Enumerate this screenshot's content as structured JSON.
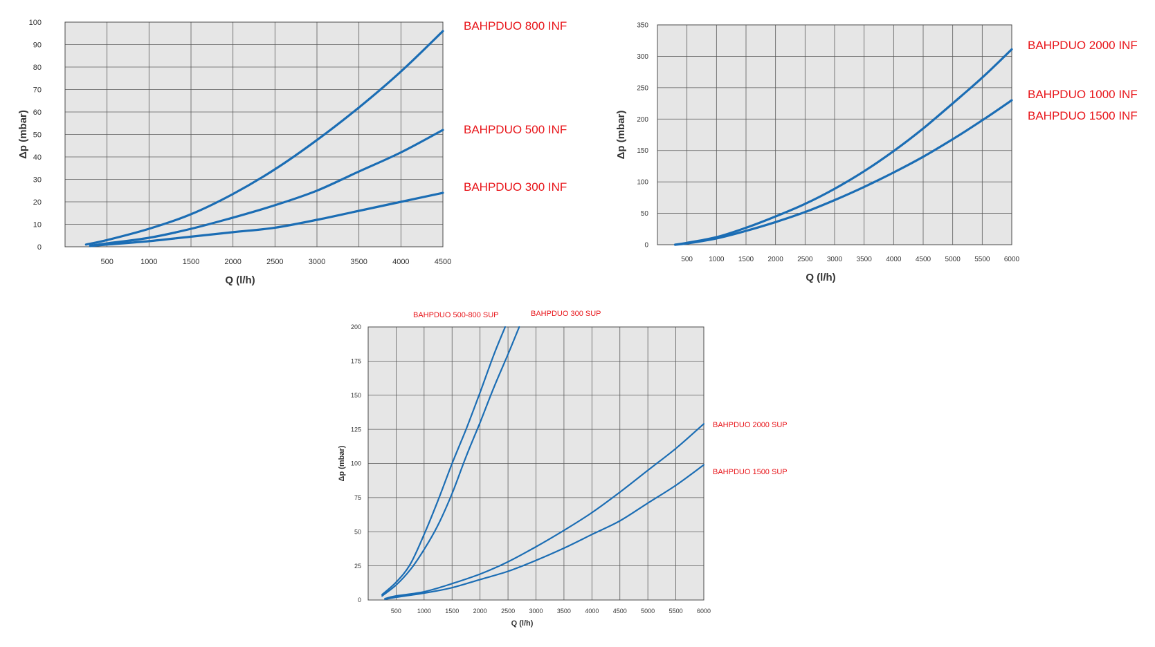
{
  "colors": {
    "line": "#1b6db4",
    "label": "#e8161b",
    "plot_background": "#e6e6e6",
    "grid": "#5a5a5a"
  },
  "chart_data": [
    {
      "type": "line",
      "xlabel": "Q (l/h)",
      "ylabel": "Δp (mbar)",
      "xlim": [
        0,
        4500
      ],
      "ylim": [
        0,
        100
      ],
      "x_ticks": [
        500,
        1000,
        1500,
        2000,
        2500,
        3000,
        3500,
        4000,
        4500
      ],
      "y_ticks": [
        0,
        10,
        20,
        30,
        40,
        50,
        60,
        70,
        80,
        90,
        100
      ],
      "grid": true,
      "legend": "labels at right of each curve",
      "series": [
        {
          "name": "BAHPDUO 800 INF",
          "x": [
            250,
            500,
            1000,
            1500,
            2000,
            2500,
            3000,
            3500,
            4000,
            4500
          ],
          "y": [
            1,
            3,
            8,
            14.5,
            23.5,
            34.5,
            47.5,
            62,
            78,
            96
          ]
        },
        {
          "name": "BAHPDUO 500 INF",
          "x": [
            300,
            500,
            1000,
            1500,
            2000,
            2500,
            3000,
            3500,
            4000,
            4500
          ],
          "y": [
            0.5,
            1.5,
            4,
            8,
            13,
            18.5,
            25,
            33.5,
            42,
            52
          ]
        },
        {
          "name": "BAHPDUO 300 INF",
          "x": [
            300,
            500,
            1000,
            1500,
            2000,
            2500,
            3000,
            3500,
            4000,
            4500
          ],
          "y": [
            0.3,
            1,
            2.5,
            4.5,
            6.5,
            8.5,
            12,
            16,
            20,
            24
          ]
        }
      ]
    },
    {
      "type": "line",
      "xlabel": "Q (l/h)",
      "ylabel": "Δp (mbar)",
      "xlim": [
        0,
        6000
      ],
      "ylim": [
        0,
        350
      ],
      "x_ticks": [
        500,
        1000,
        1500,
        2000,
        2500,
        3000,
        3500,
        4000,
        4500,
        5000,
        5500,
        6000
      ],
      "y_ticks": [
        0,
        50,
        100,
        150,
        200,
        250,
        300,
        350
      ],
      "grid": true,
      "legend": "labels at right of each curve",
      "series": [
        {
          "name": "BAHPDUO 2000 INF",
          "x": [
            300,
            500,
            1000,
            1500,
            2000,
            2500,
            3000,
            3500,
            4000,
            4500,
            5000,
            5500,
            6000
          ],
          "y": [
            0,
            3,
            12,
            27,
            45,
            65,
            89,
            117,
            149,
            185,
            225,
            266,
            311
          ]
        },
        {
          "name": "BAHPDUO 1000 INF",
          "x": [
            300,
            500,
            1000,
            1500,
            2000,
            2500,
            3000,
            3500,
            4000,
            4500,
            5000,
            5500,
            6000
          ],
          "y": [
            0,
            2,
            10,
            22,
            36,
            52,
            71,
            92,
            115,
            140,
            168,
            198,
            230
          ]
        },
        {
          "name": "BAHPDUO 1500 INF",
          "x": [],
          "y": []
        }
      ]
    },
    {
      "type": "line",
      "xlabel": "Q (l/h)",
      "ylabel": "Δp (mbar)",
      "xlim": [
        0,
        6000
      ],
      "ylim": [
        0,
        200
      ],
      "x_ticks": [
        500,
        1000,
        1500,
        2000,
        2500,
        3000,
        3500,
        4000,
        4500,
        5000,
        5500,
        6000
      ],
      "y_ticks": [
        0,
        25,
        50,
        75,
        100,
        125,
        150,
        175,
        200
      ],
      "grid": true,
      "legend": "labels beside each curve",
      "series": [
        {
          "name": "BAHPDUO 500-800 SUP",
          "x": [
            250,
            500,
            750,
            1000,
            1250,
            1500,
            1750,
            2000,
            2250,
            2450
          ],
          "y": [
            4,
            13,
            26,
            48,
            73,
            100,
            125,
            152,
            180,
            200
          ]
        },
        {
          "name": "BAHPDUO 300 SUP",
          "x": [
            250,
            500,
            750,
            1000,
            1250,
            1500,
            1750,
            2000,
            2250,
            2500,
            2700
          ],
          "y": [
            3,
            11,
            22,
            37,
            55,
            78,
            105,
            130,
            156,
            180,
            200
          ]
        },
        {
          "name": "BAHPDUO 2000 SUP",
          "x": [
            300,
            500,
            1000,
            1500,
            2000,
            2500,
            3000,
            3500,
            4000,
            4500,
            5000,
            5500,
            6000
          ],
          "y": [
            1,
            3,
            6,
            12,
            19,
            28,
            39,
            51,
            64,
            79,
            95,
            111,
            129
          ]
        },
        {
          "name": "BAHPDUO 1500 SUP",
          "x": [
            300,
            500,
            1000,
            1500,
            2000,
            2500,
            3000,
            3500,
            4000,
            4500,
            5000,
            5500,
            6000
          ],
          "y": [
            0.5,
            2,
            5,
            9,
            15,
            21,
            29,
            38,
            48,
            58,
            71,
            84,
            99
          ]
        }
      ]
    }
  ]
}
